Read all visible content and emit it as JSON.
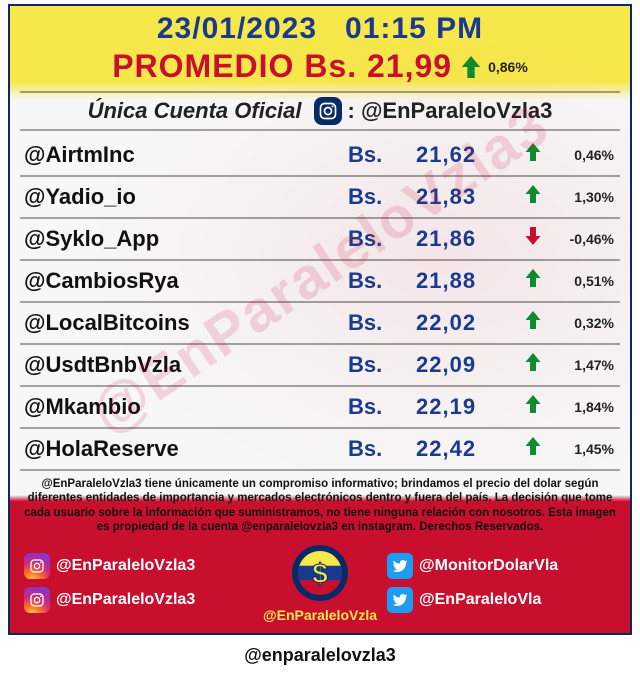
{
  "header": {
    "date": "23/01/2023",
    "time": "01:15 PM"
  },
  "promedio": {
    "label": "PROMEDIO Bs. 21,99",
    "direction": "up",
    "pct": "0,86%"
  },
  "cuenta": {
    "prefix": "Única Cuenta Oficial",
    "handle": ": @EnParaleloVzla3"
  },
  "colors": {
    "up": "#0e8a2f",
    "down": "#c8102e",
    "price": "#1a3a8f",
    "headerBlue": "#1a3a8f",
    "headerRed": "#c8102e",
    "border": "#0a2a66"
  },
  "rows": [
    {
      "handle": "@AirtmInc",
      "bs": "Bs.",
      "price": "21,62",
      "direction": "up",
      "pct": "0,46%"
    },
    {
      "handle": "@Yadio_io",
      "bs": "Bs.",
      "price": "21,83",
      "direction": "up",
      "pct": "1,30%"
    },
    {
      "handle": "@Syklo_App",
      "bs": "Bs.",
      "price": "21,86",
      "direction": "down",
      "pct": "-0,46%"
    },
    {
      "handle": "@CambiosRya",
      "bs": "Bs.",
      "price": "21,88",
      "direction": "up",
      "pct": "0,51%"
    },
    {
      "handle": "@LocalBitcoins",
      "bs": "Bs.",
      "price": "22,02",
      "direction": "up",
      "pct": "0,32%"
    },
    {
      "handle": "@UsdtBnbVzla",
      "bs": "Bs.",
      "price": "22,09",
      "direction": "up",
      "pct": "1,47%"
    },
    {
      "handle": "@Mkambio",
      "bs": "Bs.",
      "price": "22,19",
      "direction": "up",
      "pct": "1,84%"
    },
    {
      "handle": "@HolaReserve",
      "bs": "Bs.",
      "price": "22,42",
      "direction": "up",
      "pct": "1,45%"
    }
  ],
  "disclaimer": "@EnParaleloVzla3 tiene únicamente un compromiso informativo; brindamos el precio del dolar según diferentes entidades de importancia y mercados electrónicos dentro y fuera del país. La decisión que tome cada usuario sobre la información que suministramos, no tiene ninguna relación con nosotros. Esta imagen es propiedad de la cuenta @enparalelovzla3 en instagram. Derechos Reservados.",
  "watermark": "@EnParaleloVzla3",
  "footer": {
    "left": [
      "@EnParaleloVzla3",
      "@EnParaleloVzla3"
    ],
    "center_handle": "@EnParaleloVzla",
    "right": [
      "@MonitorDolarVla",
      "@EnParaleloVla"
    ]
  },
  "caption": "@enparalelovzla3"
}
